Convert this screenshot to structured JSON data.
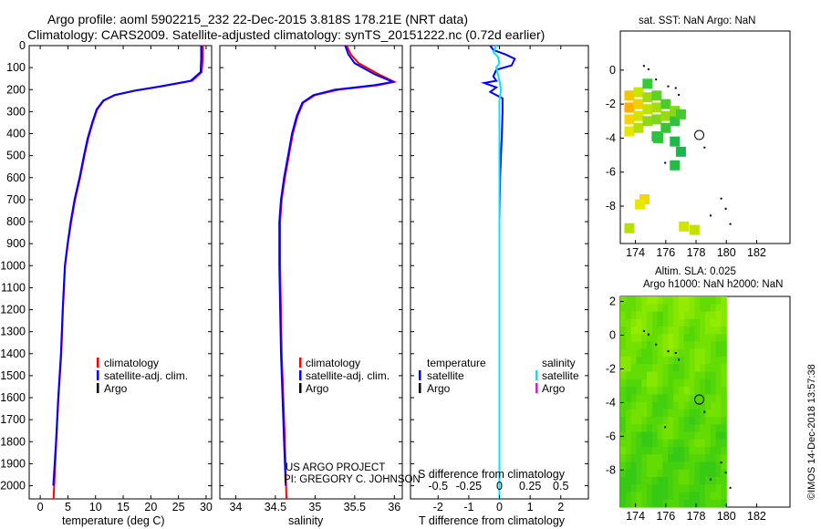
{
  "header": {
    "line1": "Argo profile: aoml 5902215_232 22-Dec-2015 3.818S 178.21E (NRT data)",
    "line2": "Climatology: CARS2009. Satellite-adjusted climatology: synTS_20151222.nc (0.72d earlier)"
  },
  "credit": "©IMOS 14-Dec-2018 13:57:38",
  "project": {
    "line1": "US ARGO PROJECT",
    "line2": "PI: GREGORY C. JOHNSON"
  },
  "colors": {
    "climatology": "#ff0000",
    "satellite": "#0000ff",
    "argo": "#000000",
    "sal_satellite": "#00e5ff",
    "sal_argo": "#ff00ff",
    "ocean_green": "#4fd61a",
    "land": "#ffffff"
  },
  "chart_data": [
    {
      "type": "line",
      "id": "temperature",
      "xlabel": "temperature (deg C)",
      "ylabel": "",
      "xlim": [
        -2,
        31
      ],
      "ylim": [
        2060,
        0
      ],
      "xticks": [
        0,
        5,
        10,
        15,
        20,
        25,
        30
      ],
      "yticks": [
        0,
        100,
        200,
        300,
        400,
        500,
        600,
        700,
        800,
        900,
        1000,
        1100,
        1200,
        1300,
        1400,
        1500,
        1600,
        1700,
        1800,
        1900,
        2000
      ],
      "legend": [
        {
          "label": "climatology",
          "color": "#ff0000"
        },
        {
          "label": "satellite-adj. clim.",
          "color": "#0000ff"
        },
        {
          "label": "Argo",
          "color": "#000000"
        }
      ],
      "series": [
        {
          "name": "climatology",
          "color": "#ff0000",
          "points": [
            [
              29.4,
              0
            ],
            [
              29.4,
              60
            ],
            [
              29.2,
              120
            ],
            [
              27.5,
              160
            ],
            [
              22,
              185
            ],
            [
              17,
              205
            ],
            [
              13.5,
              225
            ],
            [
              11.5,
              250
            ],
            [
              10.3,
              290
            ],
            [
              9.5,
              350
            ],
            [
              8.7,
              420
            ],
            [
              8,
              500
            ],
            [
              7.2,
              600
            ],
            [
              6.3,
              700
            ],
            [
              5.6,
              800
            ],
            [
              5,
              900
            ],
            [
              4.5,
              1000
            ],
            [
              4.1,
              1200
            ],
            [
              3.8,
              1400
            ],
            [
              3.3,
              1600
            ],
            [
              2.9,
              1800
            ],
            [
              2.4,
              2060
            ]
          ]
        },
        {
          "name": "satellite-adj. clim.",
          "color": "#0000ff",
          "points": [
            [
              29.1,
              0
            ],
            [
              29.1,
              60
            ],
            [
              29,
              120
            ],
            [
              27.2,
              160
            ],
            [
              21.8,
              185
            ],
            [
              17,
              205
            ],
            [
              13.4,
              225
            ],
            [
              11.4,
              250
            ],
            [
              10.2,
              290
            ],
            [
              9.4,
              350
            ],
            [
              8.6,
              420
            ],
            [
              7.9,
              500
            ],
            [
              7.1,
              600
            ],
            [
              6.2,
              700
            ],
            [
              5.5,
              800
            ],
            [
              4.95,
              900
            ],
            [
              4.45,
              1000
            ],
            [
              4.05,
              1200
            ],
            [
              3.75,
              1400
            ],
            [
              3.25,
              1600
            ],
            [
              2.85,
              1800
            ],
            [
              2.35,
              2000
            ]
          ]
        }
      ]
    },
    {
      "type": "line",
      "id": "salinity",
      "xlabel": "salinity",
      "xlim": [
        33.8,
        36.1
      ],
      "ylim": [
        2060,
        0
      ],
      "xticks": [
        34,
        34.5,
        35,
        35.5,
        36
      ],
      "legend": [
        {
          "label": "climatology",
          "color": "#ff0000"
        },
        {
          "label": "satellite-adj. clim.",
          "color": "#0000ff"
        },
        {
          "label": "Argo",
          "color": "#000000"
        }
      ],
      "series": [
        {
          "name": "climatology",
          "color": "#ff0000",
          "points": [
            [
              35.4,
              0
            ],
            [
              35.45,
              40
            ],
            [
              35.55,
              80
            ],
            [
              35.8,
              130
            ],
            [
              36.0,
              165
            ],
            [
              35.8,
              180
            ],
            [
              35.3,
              200
            ],
            [
              35.0,
              225
            ],
            [
              34.85,
              260
            ],
            [
              34.78,
              320
            ],
            [
              34.72,
              400
            ],
            [
              34.67,
              500
            ],
            [
              34.62,
              600
            ],
            [
              34.58,
              700
            ],
            [
              34.56,
              800
            ],
            [
              34.56,
              1000
            ],
            [
              34.57,
              1200
            ],
            [
              34.58,
              1400
            ],
            [
              34.6,
              1600
            ],
            [
              34.62,
              1800
            ],
            [
              34.64,
              2060
            ]
          ]
        },
        {
          "name": "satellite-adj. clim.",
          "color": "#0000ff",
          "points": [
            [
              35.38,
              0
            ],
            [
              35.42,
              40
            ],
            [
              35.5,
              80
            ],
            [
              35.75,
              130
            ],
            [
              35.98,
              165
            ],
            [
              35.75,
              180
            ],
            [
              35.25,
              200
            ],
            [
              34.98,
              225
            ],
            [
              34.84,
              260
            ],
            [
              34.77,
              320
            ],
            [
              34.71,
              400
            ],
            [
              34.66,
              500
            ],
            [
              34.61,
              600
            ],
            [
              34.57,
              700
            ],
            [
              34.55,
              800
            ],
            [
              34.55,
              1000
            ],
            [
              34.56,
              1200
            ],
            [
              34.57,
              1400
            ],
            [
              34.59,
              1600
            ],
            [
              34.61,
              1800
            ],
            [
              34.63,
              2000
            ]
          ]
        }
      ]
    },
    {
      "type": "line",
      "id": "difference",
      "xlabel": "T difference from climatology",
      "top_label": "S difference from climatology",
      "xlim": [
        -2.9,
        2.9
      ],
      "ylim": [
        2060,
        0
      ],
      "xticks": [
        -2,
        -1,
        0,
        1,
        2
      ],
      "top_ticks": [
        "-0.5",
        "-0.25",
        "0",
        "0.25",
        "0.5"
      ],
      "top_tick_positions": [
        -2,
        -1,
        0,
        1,
        2
      ],
      "legend_left": [
        {
          "label": "temperature",
          "color": ""
        },
        {
          "label": "satellite",
          "color": "#0000ff"
        },
        {
          "label": "Argo",
          "color": "#000000"
        }
      ],
      "legend_right": [
        {
          "label": "salinity",
          "color": ""
        },
        {
          "label": "satellite",
          "color": "#00e5ff"
        },
        {
          "label": "Argo",
          "color": "#ff00ff"
        }
      ],
      "series": [
        {
          "name": "temperature satellite",
          "color": "#0000ff",
          "points": [
            [
              -0.3,
              0
            ],
            [
              -0.2,
              20
            ],
            [
              0.2,
              40
            ],
            [
              0.5,
              60
            ],
            [
              0.4,
              90
            ],
            [
              -0.1,
              110
            ],
            [
              -0.2,
              140
            ],
            [
              -0.1,
              160
            ],
            [
              -0.5,
              170
            ],
            [
              -0.1,
              190
            ],
            [
              -0.3,
              210
            ],
            [
              0.1,
              240
            ],
            [
              0.1,
              300
            ],
            [
              0.08,
              400
            ],
            [
              0.05,
              500
            ],
            [
              0.02,
              600
            ],
            [
              0,
              800
            ],
            [
              0,
              1000
            ],
            [
              0,
              1200
            ],
            [
              0,
              1400
            ],
            [
              0,
              1600
            ],
            [
              0,
              1800
            ],
            [
              0,
              2060
            ]
          ]
        },
        {
          "name": "salinity satellite",
          "color": "#00e5ff",
          "points": [
            [
              -0.1,
              0
            ],
            [
              -0.2,
              30
            ],
            [
              -0.05,
              50
            ],
            [
              0,
              80
            ],
            [
              -0.1,
              100
            ],
            [
              -0.05,
              130
            ],
            [
              0,
              160
            ],
            [
              0.05,
              200
            ],
            [
              0,
              250
            ],
            [
              0,
              300
            ],
            [
              0,
              400
            ],
            [
              0,
              600
            ],
            [
              0,
              800
            ],
            [
              0,
              1000
            ],
            [
              0,
              1200
            ],
            [
              0,
              1400
            ],
            [
              0,
              1600
            ],
            [
              0,
              1800
            ],
            [
              0,
              2060
            ]
          ]
        }
      ]
    },
    {
      "type": "heatmap",
      "id": "sst-map",
      "title": "sat. SST: NaN Argo: NaN",
      "xlim": [
        173,
        184.2
      ],
      "ylim": [
        -10.2,
        2.3
      ],
      "xticks": [
        174,
        176,
        178,
        180,
        182
      ],
      "yticks": [
        0,
        -2,
        -4,
        -6,
        -8
      ],
      "marker": {
        "lon": 178.21,
        "lat": -3.818
      },
      "cells": [
        {
          "lon": 173.6,
          "lat": -1.5,
          "color": "#f3c600"
        },
        {
          "lon": 173.6,
          "lat": -2.2,
          "color": "#ffb000"
        },
        {
          "lon": 173.6,
          "lat": -2.9,
          "color": "#f7d300"
        },
        {
          "lon": 173.6,
          "lat": -3.6,
          "color": "#e4e800"
        },
        {
          "lon": 174.2,
          "lat": -1.3,
          "color": "#c8e600"
        },
        {
          "lon": 174.2,
          "lat": -2.0,
          "color": "#f0d000"
        },
        {
          "lon": 174.2,
          "lat": -2.7,
          "color": "#d6e300"
        },
        {
          "lon": 174.2,
          "lat": -3.4,
          "color": "#b6e000"
        },
        {
          "lon": 174.8,
          "lat": -0.8,
          "color": "#36c93a"
        },
        {
          "lon": 174.8,
          "lat": -1.6,
          "color": "#9edc10"
        },
        {
          "lon": 174.8,
          "lat": -2.3,
          "color": "#c0e200"
        },
        {
          "lon": 174.8,
          "lat": -3.0,
          "color": "#8fd913"
        },
        {
          "lon": 175.4,
          "lat": -1.5,
          "color": "#5fd024"
        },
        {
          "lon": 175.4,
          "lat": -2.2,
          "color": "#a5de0d"
        },
        {
          "lon": 175.4,
          "lat": -2.9,
          "color": "#7ed51a"
        },
        {
          "lon": 175.4,
          "lat": -3.9,
          "color": "#26bf44"
        },
        {
          "lon": 176.0,
          "lat": -2.0,
          "color": "#4bcc2a"
        },
        {
          "lon": 176.0,
          "lat": -2.7,
          "color": "#96dc10"
        },
        {
          "lon": 176.0,
          "lat": -3.4,
          "color": "#36c635"
        },
        {
          "lon": 176.6,
          "lat": -2.4,
          "color": "#87d816"
        },
        {
          "lon": 176.6,
          "lat": -3.0,
          "color": "#2ec23e"
        },
        {
          "lon": 176.6,
          "lat": -4.2,
          "color": "#1fb84a"
        },
        {
          "lon": 177.0,
          "lat": -2.6,
          "color": "#44c930"
        },
        {
          "lon": 177.0,
          "lat": -4.8,
          "color": "#18b64e"
        },
        {
          "lon": 176.6,
          "lat": -5.6,
          "color": "#22bb46"
        },
        {
          "lon": 174.6,
          "lat": -7.6,
          "color": "#f5d600"
        },
        {
          "lon": 174.3,
          "lat": -7.9,
          "color": "#e6e600"
        },
        {
          "lon": 173.6,
          "lat": -9.3,
          "color": "#b4e100"
        },
        {
          "lon": 177.2,
          "lat": -9.2,
          "color": "#d2e400"
        },
        {
          "lon": 177.9,
          "lat": -9.4,
          "color": "#c4e200"
        },
        {
          "lon": 175.5,
          "lat": -4.0,
          "color": "#2ec23e"
        }
      ]
    },
    {
      "type": "heatmap",
      "id": "sla-map",
      "title": "Altim. SLA: 0.025",
      "subtitle": "Argo h1000: NaN h2000: NaN",
      "xlim": [
        173,
        184.2
      ],
      "ylim": [
        -10.2,
        2.3
      ],
      "xticks": [
        174,
        176,
        178,
        180,
        182
      ],
      "yticks": [
        2,
        0,
        -2,
        -4,
        -6,
        -8
      ],
      "marker": {
        "lon": 178.21,
        "lat": -3.818
      },
      "data_extent_lon": [
        173,
        180
      ]
    }
  ]
}
